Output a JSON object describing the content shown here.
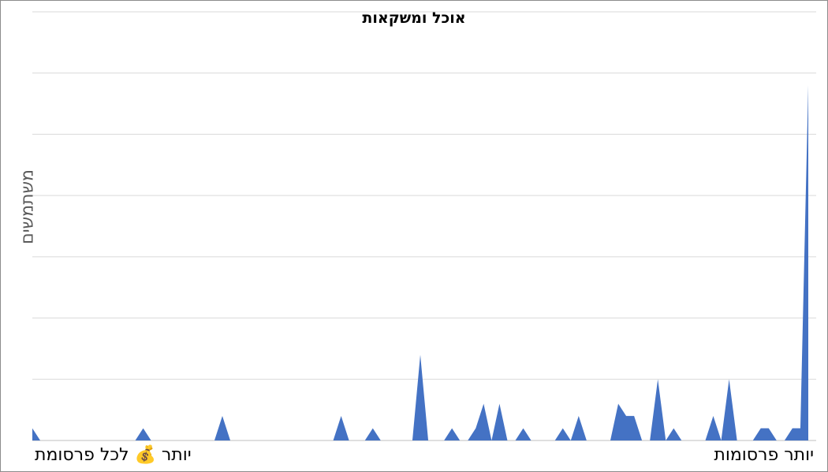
{
  "chart_data": {
    "type": "area",
    "title": "אוכל ומשקאות",
    "ylabel": "משתמשים",
    "x_start_label": "יותר 💰 לכל פרסומת",
    "x_end_label": "יותר פרסומות",
    "ylim": [
      0,
      7
    ],
    "grid": true,
    "legend": "none",
    "color": "#4472c4",
    "values": [
      0.2,
      0,
      0,
      0,
      0,
      0,
      0,
      0,
      0,
      0,
      0,
      0,
      0,
      0,
      0.2,
      0,
      0,
      0,
      0,
      0,
      0,
      0,
      0,
      0,
      0.4,
      0,
      0,
      0,
      0,
      0,
      0,
      0,
      0,
      0,
      0,
      0,
      0,
      0,
      0,
      0.4,
      0,
      0,
      0,
      0.2,
      0,
      0,
      0,
      0,
      0,
      1.4,
      0,
      0,
      0,
      0.2,
      0,
      0,
      0.2,
      0.6,
      0,
      0.6,
      0,
      0,
      0.2,
      0,
      0,
      0,
      0,
      0.2,
      0,
      0.4,
      0,
      0,
      0,
      0,
      0.6,
      0.4,
      0.4,
      0,
      0,
      1.0,
      0,
      0.2,
      0,
      0,
      0,
      0,
      0.4,
      0,
      1.0,
      0,
      0,
      0,
      0.2,
      0.2,
      0,
      0,
      0.2,
      0.2,
      5.8
    ]
  }
}
